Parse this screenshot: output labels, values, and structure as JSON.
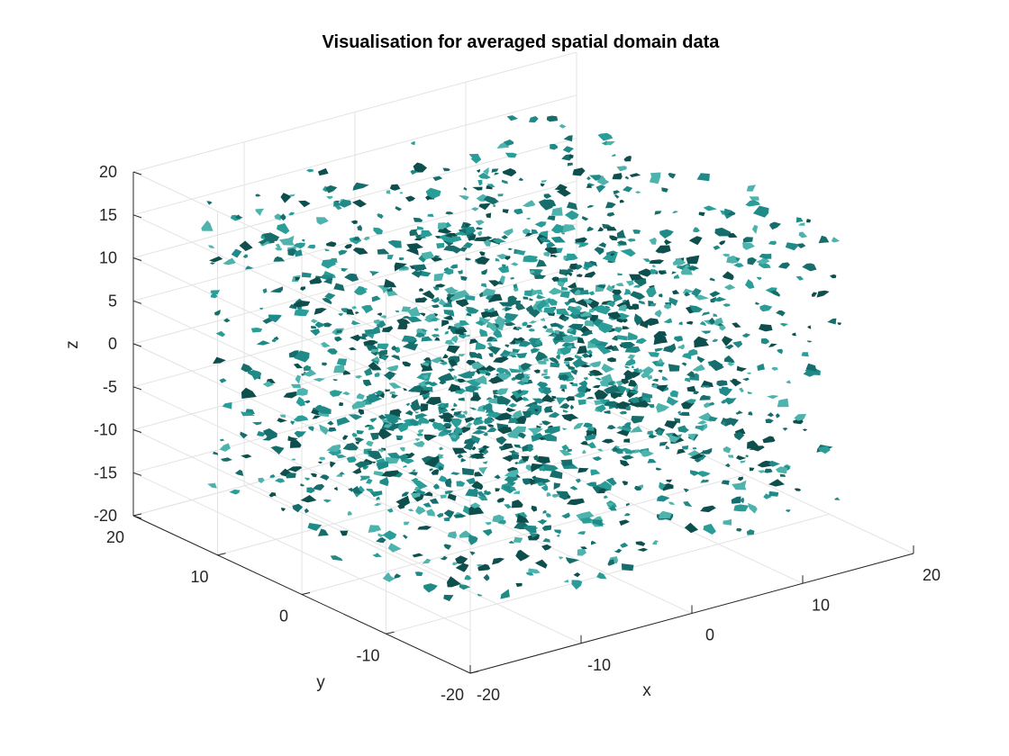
{
  "chart_data": {
    "type": "scatter",
    "subtype": "3d-isosurface",
    "title": "Visualisation for averaged spatial domain data",
    "xlabel": "x",
    "ylabel": "y",
    "zlabel": "z",
    "xlim": [
      -20,
      20
    ],
    "ylim": [
      -20,
      20
    ],
    "zlim": [
      -20,
      20
    ],
    "data_extent": {
      "x": [
        -17,
        17
      ],
      "y": [
        -17,
        17
      ],
      "z": [
        -17,
        17
      ]
    },
    "xticks": [
      -20,
      -10,
      0,
      10,
      20
    ],
    "yticks": [
      -20,
      -10,
      0,
      10,
      20
    ],
    "zticks": [
      -20,
      -15,
      -10,
      -5,
      0,
      5,
      10,
      15,
      20
    ],
    "xtick_labels": [
      "-20",
      "-10",
      "0",
      "10",
      "20"
    ],
    "ytick_labels": [
      "-20",
      "-10",
      "0",
      "10",
      "20"
    ],
    "ztick_labels": [
      "-20",
      "-15",
      "-10",
      "-5",
      "0",
      "5",
      "10",
      "15",
      "20"
    ],
    "grid": true,
    "view": "default 3D (azimuth -37.5, elevation 30)",
    "colors": {
      "surface": "#1f8a87",
      "surface_dark": "#0e4f4e",
      "surface_light": "#4fb3ad",
      "grid": "#e3e3e3",
      "axis": "#262626"
    }
  }
}
